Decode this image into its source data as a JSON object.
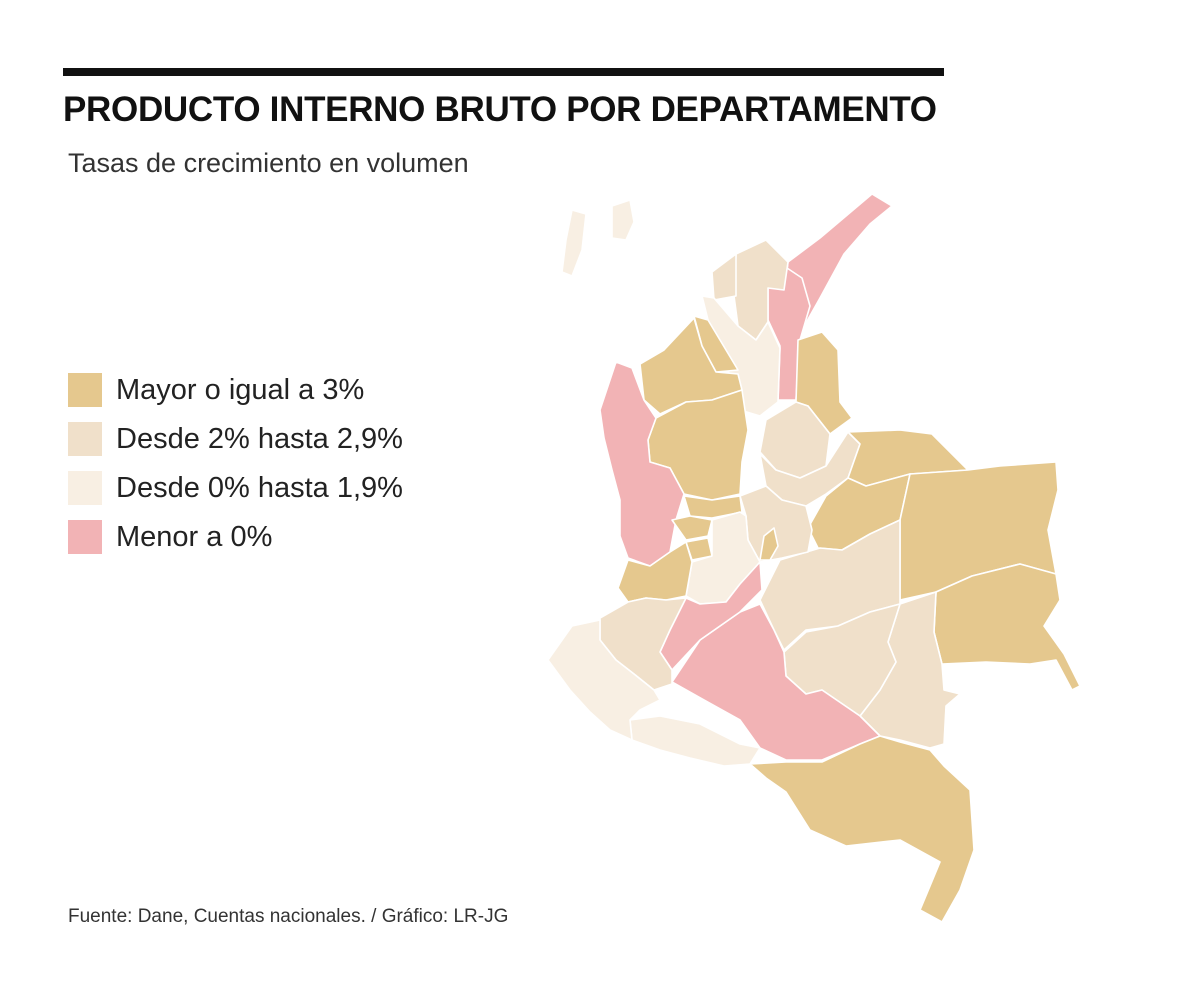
{
  "header": {
    "title": "PRODUCTO INTERNO BRUTO POR DEPARTAMENTO",
    "subtitle": "Tasas de crecimiento en volumen"
  },
  "legend": {
    "items": [
      {
        "label": "Mayor o igual a 3%",
        "category": "high",
        "color": "#e5c88e"
      },
      {
        "label": "Desde 2% hasta  2,9%",
        "category": "mid",
        "color": "#f0e0ca"
      },
      {
        "label": "Desde 0% hasta  1,9%",
        "category": "low",
        "color": "#f8efe3"
      },
      {
        "label": "Menor a 0%",
        "category": "negative",
        "color": "#f2b3b5"
      }
    ]
  },
  "map": {
    "colors": {
      "high": "#e5c88e",
      "mid": "#f0e0ca",
      "low": "#f8efe3",
      "negative": "#f2b3b5"
    }
  },
  "footer": {
    "source": "Fuente: Dane, Cuentas nacionales. / Gráfico: LR-JG"
  }
}
